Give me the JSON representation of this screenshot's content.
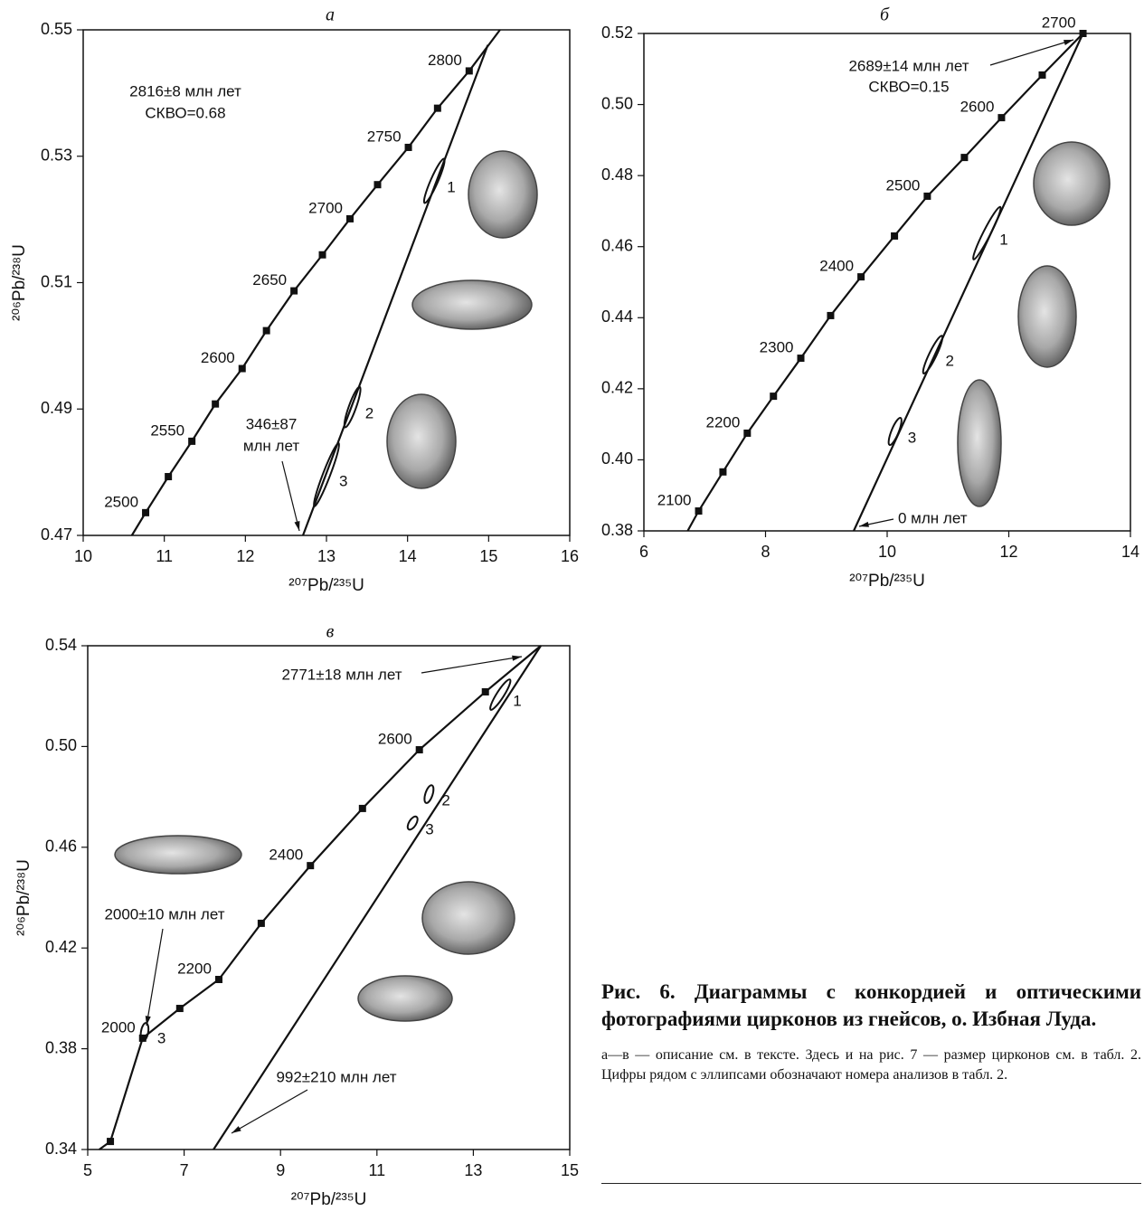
{
  "chart_data": [
    {
      "type": "concordia",
      "title": "а",
      "x_label": "²⁰⁷Pb/²³⁵U",
      "y_label": "²⁰⁶Pb/²³⁸U",
      "xlim": [
        10,
        16
      ],
      "ylim": [
        0.47,
        0.55
      ],
      "xticks": [
        10,
        11,
        12,
        13,
        14,
        15,
        16
      ],
      "yticks": [
        0.47,
        0.49,
        0.51,
        0.53,
        0.55
      ],
      "concordia_line": {
        "x": [
          10.6,
          15.14
        ],
        "y": [
          0.47,
          0.55
        ]
      },
      "points": {
        "x": [
          10.77,
          11.05,
          11.34,
          11.63,
          11.96,
          12.26,
          12.6,
          12.95,
          13.29,
          13.63,
          14.01,
          14.37,
          14.76
        ],
        "y": [
          0.4736,
          0.4793,
          0.4849,
          0.4908,
          0.4964,
          0.5024,
          0.5087,
          0.5144,
          0.5201,
          0.5255,
          0.5314,
          0.5376,
          0.5435
        ],
        "labels": [
          2500,
          null,
          2550,
          null,
          2600,
          null,
          2650,
          null,
          2700,
          null,
          2750,
          null,
          2800
        ]
      },
      "discordia": {
        "x": [
          12.71,
          14.99
        ],
        "y": [
          0.47,
          0.5476
        ]
      },
      "ellipses": [
        {
          "x": 14.33,
          "y": 0.5261,
          "x_err": 0.12,
          "y_err": 0.0035,
          "label": "1"
        },
        {
          "x": 13.32,
          "y": 0.4903,
          "x_err": 0.09,
          "y_err": 0.0032,
          "label": "2"
        },
        {
          "x": 13.0,
          "y": 0.4796,
          "x_err": 0.15,
          "y_err": 0.005,
          "label": "3"
        }
      ],
      "annotations": [
        "2816±8 млн лет",
        "СКВО=0.68",
        "346±87",
        "млн лет"
      ]
    },
    {
      "type": "concordia",
      "title": "б",
      "x_label": "²⁰⁷Pb/²³⁵U",
      "y_label": "",
      "xlim": [
        6,
        14
      ],
      "ylim": [
        0.38,
        0.52
      ],
      "xticks": [
        6,
        8,
        10,
        12,
        14
      ],
      "yticks": [
        0.38,
        {
          "value": 0.4,
          "label": "0.40"
        },
        0.42,
        0.44,
        0.46,
        0.48,
        {
          "value": 0.5,
          "label": "0.50"
        },
        0.52
      ],
      "concordia_line": {
        "x": [
          6.72,
          13.22
        ],
        "y": [
          0.38,
          0.52
        ]
      },
      "points": {
        "x": [
          6.9,
          7.3,
          7.7,
          8.13,
          8.58,
          9.07,
          9.57,
          10.12,
          10.66,
          11.27,
          11.88,
          12.55,
          13.22
        ],
        "y": [
          0.3856,
          0.3966,
          0.4075,
          0.4179,
          0.4286,
          0.4406,
          0.4515,
          0.463,
          0.4742,
          0.4851,
          0.4963,
          0.5083,
          0.52
        ],
        "labels": [
          2100,
          null,
          2200,
          null,
          2300,
          null,
          2400,
          null,
          2500,
          null,
          2600,
          null,
          2700
        ]
      },
      "discordia": {
        "x": [
          9.45,
          13.22
        ],
        "y": [
          0.38,
          0.52
        ]
      },
      "ellipses": [
        {
          "x": 11.64,
          "y": 0.4638,
          "x_err": 0.22,
          "y_err": 0.0074,
          "label": "1"
        },
        {
          "x": 10.75,
          "y": 0.4296,
          "x_err": 0.15,
          "y_err": 0.0053,
          "label": "2"
        },
        {
          "x": 10.13,
          "y": 0.408,
          "x_err": 0.09,
          "y_err": 0.0038,
          "label": "3"
        }
      ],
      "annotations": [
        "2689±14 млн лет",
        "СКВО=0.15",
        "0 млн лет"
      ]
    },
    {
      "type": "concordia",
      "title": "в",
      "x_label": "²⁰⁷Pb/²³⁵U",
      "y_label": "²⁰⁶Pb/²³⁸U",
      "xlim": [
        5,
        15
      ],
      "ylim": [
        0.34,
        0.54
      ],
      "xticks": [
        5,
        7,
        9,
        11,
        13,
        15
      ],
      "yticks": [
        0.34,
        0.38,
        0.42,
        0.46,
        {
          "value": 0.5,
          "label": "0.50"
        },
        0.54
      ],
      "concordia_line": {
        "x": [
          5.24,
          14.4
        ],
        "y": [
          0.34,
          0.54
        ]
      },
      "points": {
        "x": [
          5.47,
          6.14,
          6.91,
          7.72,
          8.6,
          9.62,
          10.7,
          11.88,
          13.25
        ],
        "y": [
          0.3432,
          0.3842,
          0.396,
          0.4075,
          0.4298,
          0.4527,
          0.4754,
          0.4987,
          0.5217
        ],
        "labels": [
          null,
          2000,
          null,
          2200,
          null,
          2400,
          null,
          2600,
          null
        ]
      },
      "discordia": {
        "x": [
          7.61,
          14.4
        ],
        "y": [
          0.34,
          0.54
        ]
      },
      "ellipses": [
        {
          "x": 13.56,
          "y": 0.5206,
          "x_err": 0.2,
          "y_err": 0.006,
          "label": "1"
        },
        {
          "x": 12.08,
          "y": 0.4811,
          "x_err": 0.06,
          "y_err": 0.0035,
          "label": "2"
        },
        {
          "x": 11.74,
          "y": 0.4696,
          "x_err": 0.08,
          "y_err": 0.0025,
          "label": "3"
        },
        {
          "x": 6.18,
          "y": 0.3867,
          "x_err": 0.03,
          "y_err": 0.0035,
          "label": "3"
        }
      ],
      "annotations": [
        "2771±18 млн лет",
        "2000±10 млн лет",
        "992±210 млн лет"
      ]
    }
  ],
  "caption": {
    "title": "Рис. 6. Диаграммы с конкордией и оптическими фотографиями цирконов из гнейсов, о. Избная Луда.",
    "text": "а—в — описание см. в тексте. Здесь и на рис. 7 — размер цирконов см. в табл. 2. Цифры рядом с эллипсами обозначают номера анализов в табл. 2."
  }
}
